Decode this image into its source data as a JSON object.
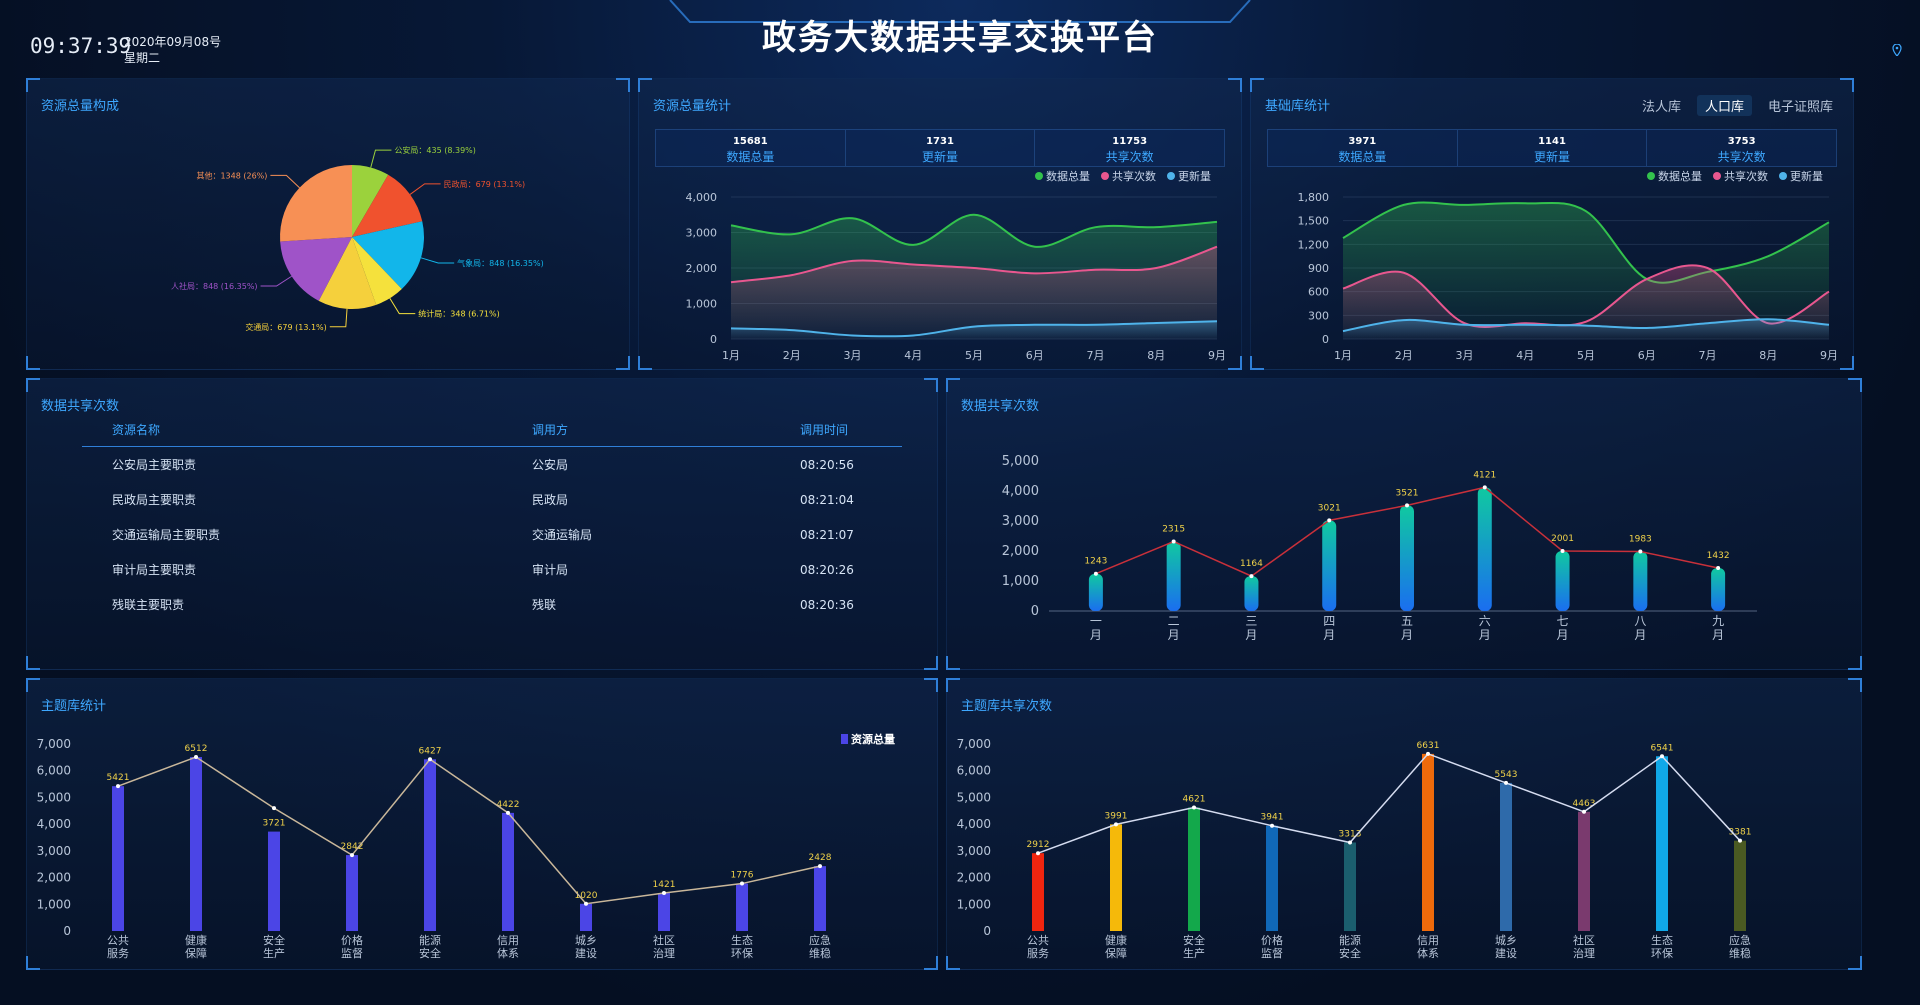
{
  "header": {
    "title": "政务大数据共享交换平台",
    "time": "09:37:39",
    "date": "2020年09月08号",
    "weekday": "星期二"
  },
  "panels": {
    "composition": {
      "title": "资源总量构成"
    },
    "resource_stats": {
      "title": "资源总量统计",
      "stats": [
        {
          "value": "15681",
          "label": "数据总量"
        },
        {
          "value": "1731",
          "label": "更新量"
        },
        {
          "value": "11753",
          "label": "共享次数"
        }
      ]
    },
    "base_stats": {
      "title": "基础库统计",
      "tabs": [
        "法人库",
        "人口库",
        "电子证照库"
      ],
      "active_tab": 1,
      "stats": [
        {
          "value": "3971",
          "label": "数据总量"
        },
        {
          "value": "1141",
          "label": "更新量"
        },
        {
          "value": "3753",
          "label": "共享次数"
        }
      ]
    },
    "share_table": {
      "title": "数据共享次数",
      "headers": [
        "资源名称",
        "调用方",
        "调用时间"
      ],
      "rows": [
        [
          "公安局主要职责",
          "公安局",
          "08:20:56"
        ],
        [
          "民政局主要职责",
          "民政局",
          "08:21:04"
        ],
        [
          "交通运输局主要职责",
          "交通运输局",
          "08:21:07"
        ],
        [
          "审计局主要职责",
          "审计局",
          "08:20:26"
        ],
        [
          "残联主要职责",
          "残联",
          "08:20:36"
        ]
      ]
    },
    "share_chart": {
      "title": "数据共享次数"
    },
    "topic_stats": {
      "title": "主题库统计"
    },
    "topic_share": {
      "title": "主题库共享次数"
    }
  },
  "colors": {
    "accent": "#3ea8ff",
    "green": "#33c24d",
    "pink": "#e8578f",
    "blue": "#4fb3ea"
  },
  "chart_data": [
    {
      "id": "pie",
      "type": "pie",
      "slices": [
        {
          "label": "公安局",
          "value": 435,
          "pct": "8.39%",
          "color": "#9bd23c"
        },
        {
          "label": "民政局",
          "value": 679,
          "pct": "13.1%",
          "color": "#f0522e"
        },
        {
          "label": "气象局",
          "value": 848,
          "pct": "16.35%",
          "color": "#12b6ea"
        },
        {
          "label": "统计局",
          "value": 348,
          "pct": "6.71%",
          "color": "#f5e13c"
        },
        {
          "label": "交通局",
          "value": 679,
          "pct": "13.1%",
          "color": "#f5d03c"
        },
        {
          "label": "人社局",
          "value": 848,
          "pct": "16.35%",
          "color": "#9f53c8"
        },
        {
          "label": "其他",
          "value": 1348,
          "pct": "26%",
          "color": "#f79055"
        }
      ]
    },
    {
      "id": "line1",
      "type": "area",
      "categories": [
        "1月",
        "2月",
        "3月",
        "4月",
        "5月",
        "6月",
        "7月",
        "8月",
        "9月"
      ],
      "ylim": [
        0,
        4000
      ],
      "yticks": [
        "0",
        "1,000",
        "2,000",
        "3,000",
        "4,000"
      ],
      "legend": [
        "数据总量",
        "共享次数",
        "更新量"
      ],
      "series": [
        {
          "name": "数据总量",
          "color": "#33c24d",
          "values": [
            3200,
            2950,
            3400,
            2650,
            3500,
            2600,
            3150,
            3150,
            3300
          ]
        },
        {
          "name": "共享次数",
          "color": "#e8578f",
          "values": [
            1600,
            1800,
            2200,
            2100,
            2000,
            1850,
            1950,
            2000,
            2600
          ]
        },
        {
          "name": "更新量",
          "color": "#4fb3ea",
          "values": [
            300,
            250,
            100,
            100,
            350,
            400,
            400,
            450,
            500
          ]
        }
      ]
    },
    {
      "id": "line2",
      "type": "area",
      "categories": [
        "1月",
        "2月",
        "3月",
        "4月",
        "5月",
        "6月",
        "7月",
        "8月",
        "9月"
      ],
      "ylim": [
        0,
        1800
      ],
      "yticks": [
        "0",
        "300",
        "600",
        "900",
        "1,200",
        "1,500",
        "1,800"
      ],
      "legend": [
        "数据总量",
        "共享次数",
        "更新量"
      ],
      "series": [
        {
          "name": "数据总量",
          "color": "#33c24d",
          "values": [
            1280,
            1700,
            1700,
            1720,
            1620,
            760,
            850,
            1050,
            1480
          ]
        },
        {
          "name": "共享次数",
          "color": "#e8578f",
          "values": [
            640,
            840,
            200,
            200,
            220,
            760,
            900,
            200,
            600
          ]
        },
        {
          "name": "更新量",
          "color": "#4fb3ea",
          "values": [
            100,
            240,
            180,
            180,
            170,
            140,
            200,
            250,
            180
          ]
        }
      ]
    },
    {
      "id": "bar1",
      "type": "bar",
      "categories": [
        "一月",
        "二月",
        "三月",
        "四月",
        "五月",
        "六月",
        "七月",
        "八月",
        "九月"
      ],
      "values": [
        1243,
        2315,
        1164,
        3021,
        3521,
        4121,
        2001,
        1983,
        1432
      ],
      "ylim": [
        0,
        5000
      ],
      "yticks": [
        "0",
        "1,000",
        "2,000",
        "3,000",
        "4,000",
        "5,000"
      ]
    },
    {
      "id": "bar2",
      "type": "bar",
      "categories": [
        "公共服务",
        "健康保障",
        "安全生产",
        "价格监督",
        "能源安全",
        "信用体系",
        "城乡建设",
        "社区治理",
        "生态环保",
        "应急维稳"
      ],
      "values": [
        5421,
        6512,
        3721,
        2842,
        6427,
        4422,
        1020,
        1421,
        1776,
        2428
      ],
      "line_values": [
        5421,
        6512,
        4600,
        2842,
        6427,
        4422,
        1020,
        1421,
        1776,
        2428
      ],
      "ylim": [
        0,
        7000
      ],
      "yticks": [
        "0",
        "1,000",
        "2,000",
        "3,000",
        "4,000",
        "5,000",
        "6,000",
        "7,000"
      ],
      "legend": "资源总量",
      "color": "#4b45e6"
    },
    {
      "id": "bar3",
      "type": "bar",
      "categories": [
        "公共服务",
        "健康保障",
        "安全生产",
        "价格监督",
        "能源安全",
        "信用体系",
        "城乡建设",
        "社区治理",
        "生态环保",
        "应急维稳"
      ],
      "values": [
        2912,
        3991,
        4621,
        3941,
        3313,
        6631,
        5543,
        4463,
        6541,
        3381
      ],
      "ylim": [
        0,
        7000
      ],
      "yticks": [
        "0",
        "1,000",
        "2,000",
        "3,000",
        "4,000",
        "5,000",
        "6,000",
        "7,000"
      ],
      "colors": [
        "#f0250f",
        "#f5b90a",
        "#13a84b",
        "#1068b8",
        "#1b5e6e",
        "#ee6a0b",
        "#2e6aaa",
        "#7a3a6e",
        "#10a8e8",
        "#4a5a22"
      ]
    }
  ]
}
